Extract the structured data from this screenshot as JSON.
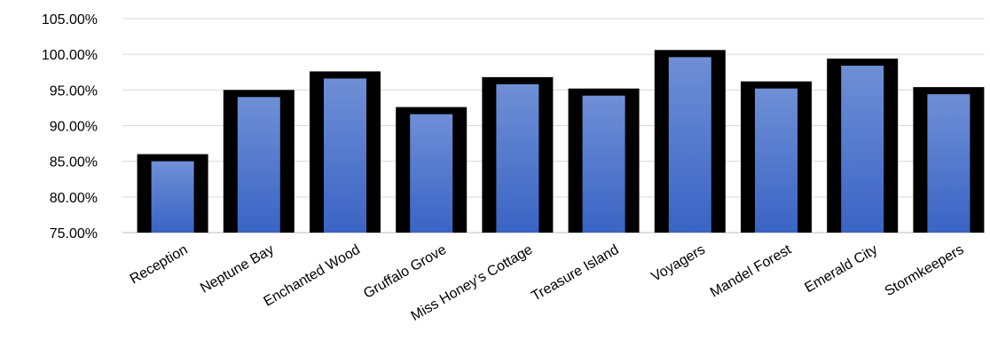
{
  "chart_data": {
    "type": "bar",
    "title": "",
    "xlabel": "",
    "ylabel": "",
    "categories": [
      "Reception",
      "Neptune Bay",
      "Enchanted Wood",
      "Gruffalo Grove",
      "Miss Honey's Cottage",
      "Treasure Island",
      "Voyagers",
      "Mandel Forest",
      "Emerald City",
      "Stormkeepers"
    ],
    "values": [
      86.0,
      95.0,
      97.6,
      92.6,
      96.8,
      95.2,
      100.6,
      96.2,
      99.4,
      95.4
    ],
    "ylim": [
      75,
      105
    ],
    "yticks": [
      "75.00%",
      "80.00%",
      "85.00%",
      "90.00%",
      "95.00%",
      "100.00%",
      "105.00%"
    ],
    "ytick_values": [
      75,
      80,
      85,
      90,
      95,
      100,
      105
    ],
    "grid": true,
    "colors": {
      "bar_fill_top": "#6f8fd6",
      "bar_fill_bottom": "#3a64c4",
      "bar_border": "#000000",
      "grid": "#d9d9d9"
    }
  }
}
